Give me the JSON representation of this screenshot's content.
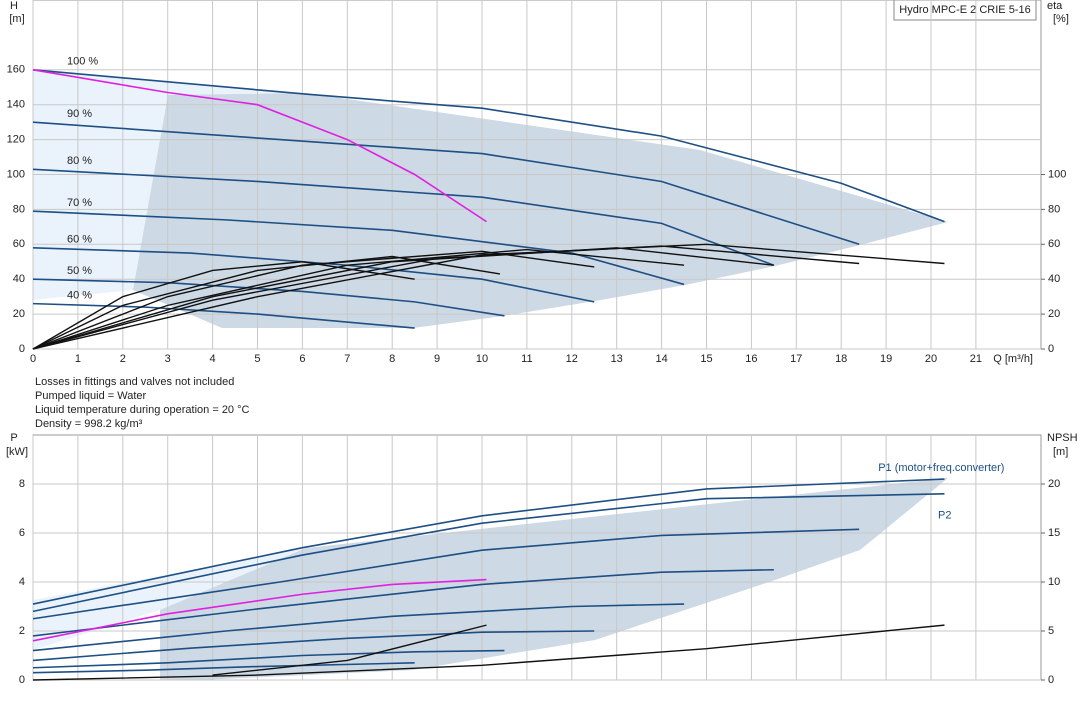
{
  "title_box": "Hydro MPC-E 2 CRIE 5-16",
  "notes": [
    "Losses in fittings and valves not included",
    "Pumped liquid = Water",
    "Liquid temperature during operation = 20 °C",
    "Density = 998.2 kg/m³"
  ],
  "chart_data": [
    {
      "type": "line",
      "y_label": [
        "H",
        "[m]"
      ],
      "y2_label": [
        "eta",
        "[%]"
      ],
      "x_label": "Q [m³/h]",
      "xlim": [
        0,
        22.45
      ],
      "xticks": [
        0,
        1,
        2,
        3,
        4,
        5,
        6,
        7,
        8,
        9,
        10,
        11,
        12,
        13,
        14,
        15,
        16,
        17,
        18,
        19,
        20,
        21
      ],
      "show_xtick_labels": true,
      "ylim": [
        0,
        200
      ],
      "yticks": [
        0,
        20,
        40,
        60,
        80,
        100,
        120,
        140,
        160
      ],
      "y2lim": [
        0,
        200
      ],
      "y2ticks": [
        0,
        20,
        40,
        60,
        80,
        100
      ],
      "series": [
        {
          "label": "100 %",
          "label_at": "start",
          "color": "#1d4f84",
          "x": [
            0,
            6.1,
            10,
            14,
            18,
            20.3
          ],
          "values": [
            160,
            146,
            138,
            122,
            95,
            73
          ]
        },
        {
          "label": "90 %",
          "label_at": "start",
          "color": "#1d4f84",
          "x": [
            0,
            5.5,
            10,
            14,
            18.4
          ],
          "values": [
            130,
            120,
            112,
            96,
            60
          ]
        },
        {
          "label": "80 %",
          "label_at": "start",
          "color": "#1d4f84",
          "x": [
            0,
            5,
            10,
            14,
            16.5
          ],
          "values": [
            103,
            96,
            87,
            72,
            48
          ]
        },
        {
          "label": "70 %",
          "label_at": "start",
          "color": "#1d4f84",
          "x": [
            0,
            4.3,
            8,
            12,
            14.5
          ],
          "values": [
            79,
            74,
            68,
            55,
            37
          ]
        },
        {
          "label": "60 %",
          "label_at": "start",
          "color": "#1d4f84",
          "x": [
            0,
            3.5,
            7,
            10,
            12.5
          ],
          "values": [
            58,
            55,
            48,
            40,
            27
          ]
        },
        {
          "label": "50 %",
          "label_at": "start",
          "color": "#1d4f84",
          "x": [
            0,
            3,
            6,
            8.5,
            10.5
          ],
          "values": [
            40,
            38,
            33,
            27,
            19
          ]
        },
        {
          "label": "40 %",
          "label_at": "start",
          "color": "#1d4f84",
          "x": [
            0,
            2.5,
            5,
            8.5
          ],
          "values": [
            26,
            24,
            20,
            12
          ]
        },
        {
          "color": "#e020e0",
          "x": [
            0,
            3,
            5,
            7,
            8.5,
            10.1
          ],
          "values": [
            160,
            147,
            140,
            120,
            100,
            73
          ]
        },
        {
          "color": "#111111",
          "axis": "y2",
          "x": [
            0,
            2,
            4,
            6,
            8.5
          ],
          "values": [
            0,
            30,
            45,
            50,
            40
          ]
        },
        {
          "color": "#111111",
          "axis": "y2",
          "x": [
            0,
            2,
            5,
            8,
            10.4
          ],
          "values": [
            0,
            25,
            45,
            53,
            43
          ]
        },
        {
          "color": "#111111",
          "axis": "y2",
          "x": [
            0,
            3,
            6,
            10,
            12.5
          ],
          "values": [
            0,
            30,
            48,
            56,
            47
          ]
        },
        {
          "color": "#111111",
          "axis": "y2",
          "x": [
            0,
            3,
            7,
            11,
            14.5
          ],
          "values": [
            0,
            25,
            48,
            57,
            48
          ]
        },
        {
          "color": "#111111",
          "axis": "y2",
          "x": [
            0,
            4,
            8,
            13,
            16.5
          ],
          "values": [
            0,
            30,
            50,
            58,
            48
          ]
        },
        {
          "color": "#111111",
          "axis": "y2",
          "x": [
            0,
            4,
            9,
            14,
            18.4
          ],
          "values": [
            0,
            28,
            52,
            59,
            49
          ]
        },
        {
          "color": "#111111",
          "axis": "y2",
          "x": [
            0,
            5,
            10,
            15,
            20.3
          ],
          "values": [
            0,
            30,
            54,
            60,
            49
          ]
        }
      ]
    },
    {
      "type": "line",
      "y_label": [
        "P",
        "[kW]"
      ],
      "y2_label": [
        "NPSH",
        "[m]"
      ],
      "xlim": [
        0,
        22.45
      ],
      "xticks": [
        0,
        1,
        2,
        3,
        4,
        5,
        6,
        7,
        8,
        9,
        10,
        11,
        12,
        13,
        14,
        15,
        16,
        17,
        18,
        19,
        20,
        21
      ],
      "show_xtick_labels": false,
      "ylim": [
        0,
        10
      ],
      "yticks": [
        0,
        2,
        4,
        6,
        8
      ],
      "y2lim": [
        0,
        25
      ],
      "y2ticks": [
        0,
        5,
        10,
        15,
        20
      ],
      "series": [
        {
          "label": "P1 (motor+freq.converter)",
          "label_at": "end-above",
          "color": "#1d4f84",
          "x": [
            0,
            6,
            10,
            15,
            20.3
          ],
          "values": [
            3.1,
            5.4,
            6.7,
            7.8,
            8.2
          ]
        },
        {
          "label": "P2",
          "label_at": "end-below",
          "color": "#1d4f84",
          "x": [
            0,
            6,
            10,
            15,
            20.3
          ],
          "values": [
            2.8,
            5.1,
            6.4,
            7.4,
            7.6
          ]
        },
        {
          "color": "#1d4f84",
          "x": [
            0,
            5.5,
            10,
            14,
            18.4
          ],
          "values": [
            2.5,
            4.0,
            5.3,
            5.9,
            6.15
          ]
        },
        {
          "color": "#1d4f84",
          "x": [
            0,
            5,
            10,
            14,
            16.5
          ],
          "values": [
            1.8,
            2.9,
            3.9,
            4.4,
            4.5
          ]
        },
        {
          "color": "#1d4f84",
          "x": [
            0,
            4.3,
            8,
            12,
            14.5
          ],
          "values": [
            1.2,
            2.0,
            2.6,
            3.0,
            3.1
          ]
        },
        {
          "color": "#1d4f84",
          "x": [
            0,
            3.5,
            7,
            10,
            12.5
          ],
          "values": [
            0.8,
            1.3,
            1.7,
            1.95,
            2.0
          ]
        },
        {
          "color": "#1d4f84",
          "x": [
            0,
            3,
            6,
            8.5,
            10.5
          ],
          "values": [
            0.5,
            0.7,
            1.0,
            1.15,
            1.2
          ]
        },
        {
          "color": "#1d4f84",
          "x": [
            0,
            2.5,
            5,
            8.5
          ],
          "values": [
            0.3,
            0.4,
            0.55,
            0.7
          ]
        },
        {
          "color": "#e020e0",
          "x": [
            0,
            3,
            6,
            8,
            10.1
          ],
          "values": [
            1.6,
            2.7,
            3.5,
            3.9,
            4.1
          ]
        },
        {
          "color": "#111111",
          "axis": "y2",
          "x": [
            0,
            5,
            10,
            15,
            20.3
          ],
          "values": [
            0,
            0.5,
            1.5,
            3.2,
            5.6
          ]
        },
        {
          "color": "#111111",
          "axis": "y2",
          "x": [
            4,
            7,
            10.1
          ],
          "values": [
            0.5,
            2,
            5.6
          ]
        }
      ]
    }
  ]
}
